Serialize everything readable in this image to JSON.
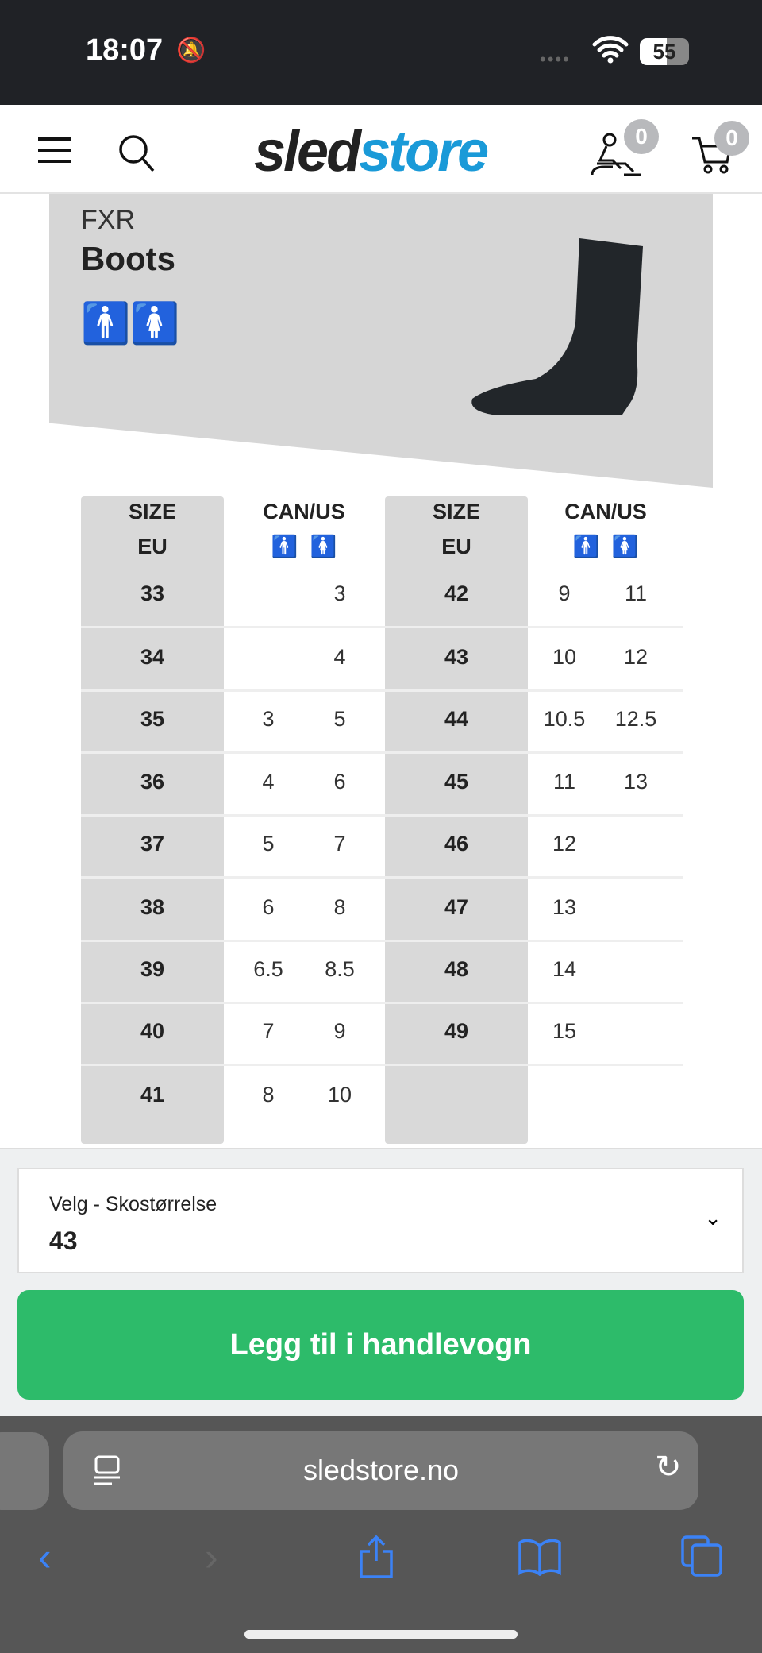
{
  "status": {
    "time": "18:07",
    "battery": "55"
  },
  "header": {
    "logo_a": "sled",
    "logo_b": "store",
    "account_count": "0",
    "cart_count": "0"
  },
  "banner": {
    "brand": "FXR",
    "title": "Boots"
  },
  "table": {
    "header_size": [
      "SIZE",
      "EU"
    ],
    "header_canus": "CAN/US",
    "left": [
      [
        "33",
        "",
        "3"
      ],
      [
        "34",
        "",
        "4"
      ],
      [
        "35",
        "3",
        "5"
      ],
      [
        "36",
        "4",
        "6"
      ],
      [
        "37",
        "5",
        "7"
      ],
      [
        "38",
        "6",
        "8"
      ],
      [
        "39",
        "6.5",
        "8.5"
      ],
      [
        "40",
        "7",
        "9"
      ],
      [
        "41",
        "8",
        "10"
      ]
    ],
    "right": [
      [
        "42",
        "9",
        "11"
      ],
      [
        "43",
        "10",
        "12"
      ],
      [
        "44",
        "10.5",
        "12.5"
      ],
      [
        "45",
        "11",
        "13"
      ],
      [
        "46",
        "12",
        ""
      ],
      [
        "47",
        "13",
        ""
      ],
      [
        "48",
        "14",
        ""
      ],
      [
        "49",
        "15",
        ""
      ]
    ]
  },
  "size_select": {
    "label": "Velg - Skostørrelse",
    "value": "43"
  },
  "add_to_cart": "Legg til i handlevogn",
  "browser": {
    "url": "sledstore.no"
  },
  "colors": {
    "green": "#2dbb6a",
    "brand_blue": "#1a9ad8"
  }
}
